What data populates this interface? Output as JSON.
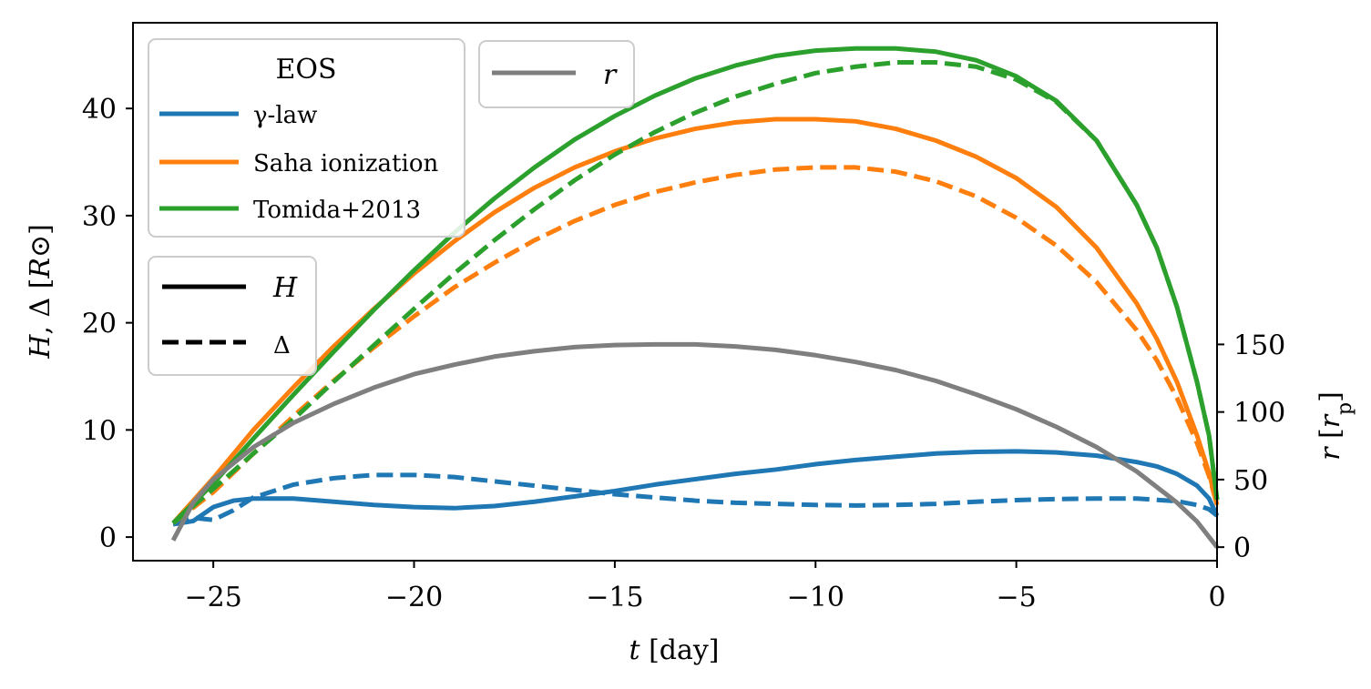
{
  "chart_data": {
    "type": "line",
    "xlabel": "t [day]",
    "ylabel": "H, Δ [R⊙]",
    "y2label": "r [r_p]",
    "xlim": [
      -27,
      0
    ],
    "ylim": [
      -2.2,
      48
    ],
    "y2lim": [
      -10,
      388
    ],
    "xticks": [
      -25,
      -20,
      -15,
      -10,
      -5,
      0
    ],
    "yticks": [
      0,
      10,
      20,
      30,
      40
    ],
    "y2ticks": [
      0,
      50,
      100,
      150
    ],
    "x_tick_labels": [
      "−25",
      "−20",
      "−15",
      "−10",
      "−5",
      "0"
    ],
    "y_tick_labels": [
      "0",
      "10",
      "20",
      "30",
      "40"
    ],
    "y2_tick_labels": [
      "0",
      "50",
      "100",
      "150"
    ],
    "colors": {
      "gamma": "#1f77b4",
      "saha": "#ff7f0e",
      "tomida": "#2ca02c",
      "r": "#7f7f7f"
    },
    "series": [
      {
        "name": "γ-law",
        "quantity": "H",
        "axis": "left",
        "style": "solid",
        "color": "#1f77b4",
        "x": [
          -26,
          -25.5,
          -25,
          -24.5,
          -24,
          -23,
          -22,
          -21,
          -20,
          -19,
          -18,
          -17,
          -16,
          -15,
          -14,
          -13,
          -12,
          -11,
          -10,
          -9,
          -8,
          -7,
          -6,
          -5,
          -4,
          -3,
          -2,
          -1.5,
          -1,
          -0.5,
          -0.2,
          0
        ],
        "y": [
          1.2,
          1.5,
          2.8,
          3.4,
          3.6,
          3.6,
          3.3,
          3.0,
          2.8,
          2.7,
          2.9,
          3.3,
          3.8,
          4.3,
          4.9,
          5.4,
          5.9,
          6.3,
          6.8,
          7.2,
          7.5,
          7.8,
          7.95,
          8.0,
          7.9,
          7.6,
          7.0,
          6.6,
          5.9,
          4.8,
          3.6,
          2.0
        ]
      },
      {
        "name": "γ-law",
        "quantity": "Δ",
        "axis": "left",
        "style": "dashed",
        "color": "#1f77b4",
        "x": [
          -26,
          -25.5,
          -25,
          -24.5,
          -24,
          -23,
          -22,
          -21,
          -20,
          -19,
          -18,
          -17,
          -16,
          -15,
          -14,
          -13,
          -12,
          -11,
          -10,
          -9,
          -8,
          -7,
          -6,
          -5,
          -4,
          -3,
          -2,
          -1,
          -0.5,
          -0.2,
          0
        ],
        "y": [
          1.2,
          1.8,
          1.6,
          2.5,
          3.7,
          4.9,
          5.5,
          5.8,
          5.8,
          5.6,
          5.2,
          4.8,
          4.4,
          4.0,
          3.7,
          3.4,
          3.2,
          3.1,
          3.0,
          2.95,
          3.0,
          3.1,
          3.3,
          3.45,
          3.55,
          3.6,
          3.6,
          3.35,
          3.0,
          2.6,
          2.0
        ]
      },
      {
        "name": "Saha ionization",
        "quantity": "H",
        "axis": "left",
        "style": "solid",
        "color": "#ff7f0e",
        "x": [
          -26,
          -25,
          -24,
          -23,
          -22,
          -21,
          -20,
          -19,
          -18,
          -17,
          -16,
          -15,
          -14,
          -13,
          -12,
          -11,
          -10,
          -9,
          -8,
          -7,
          -6,
          -5,
          -4,
          -3,
          -2,
          -1.5,
          -1,
          -0.5,
          -0.2,
          0
        ],
        "y": [
          1.3,
          5.5,
          10.0,
          14.0,
          17.8,
          21.3,
          24.6,
          27.6,
          30.3,
          32.6,
          34.5,
          36.0,
          37.2,
          38.1,
          38.7,
          39.0,
          39.0,
          38.8,
          38.1,
          37.0,
          35.5,
          33.5,
          30.8,
          27.0,
          21.8,
          18.5,
          14.5,
          9.5,
          6.0,
          3.0
        ]
      },
      {
        "name": "Saha ionization",
        "quantity": "Δ",
        "axis": "left",
        "style": "dashed",
        "color": "#ff7f0e",
        "x": [
          -26,
          -25,
          -24,
          -23,
          -22,
          -21,
          -20,
          -19,
          -18,
          -17,
          -16,
          -15,
          -14,
          -13,
          -12,
          -11,
          -10,
          -9,
          -8,
          -7,
          -6,
          -5,
          -4,
          -3,
          -2,
          -1.5,
          -1,
          -0.5,
          -0.2,
          0
        ],
        "y": [
          1.3,
          4.2,
          7.8,
          11.3,
          14.6,
          17.7,
          20.6,
          23.3,
          25.6,
          27.7,
          29.5,
          31.0,
          32.2,
          33.1,
          33.8,
          34.3,
          34.5,
          34.5,
          34.1,
          33.2,
          31.8,
          29.8,
          27.2,
          23.8,
          19.3,
          16.5,
          13.0,
          8.8,
          5.7,
          3.0
        ]
      },
      {
        "name": "Tomida+2013",
        "quantity": "H",
        "axis": "left",
        "style": "solid",
        "color": "#2ca02c",
        "x": [
          -26,
          -25,
          -24,
          -23,
          -22,
          -21,
          -20,
          -19,
          -18,
          -17,
          -16,
          -15,
          -14,
          -13,
          -12,
          -11,
          -10,
          -9,
          -8,
          -7,
          -6,
          -5,
          -4,
          -3,
          -2,
          -1.5,
          -1,
          -0.5,
          -0.2,
          0
        ],
        "y": [
          1.3,
          5.0,
          9.2,
          13.3,
          17.3,
          21.2,
          24.9,
          28.4,
          31.6,
          34.5,
          37.1,
          39.3,
          41.2,
          42.8,
          44.0,
          44.9,
          45.4,
          45.6,
          45.6,
          45.3,
          44.5,
          43.0,
          40.7,
          37.0,
          31.0,
          27.0,
          21.5,
          14.5,
          9.5,
          3.5
        ]
      },
      {
        "name": "Tomida+2013",
        "quantity": "Δ",
        "axis": "left",
        "style": "dashed",
        "color": "#2ca02c",
        "x": [
          -26,
          -25,
          -24,
          -23,
          -22,
          -21,
          -20,
          -19,
          -18,
          -17,
          -16,
          -15,
          -14,
          -13,
          -12,
          -11,
          -10,
          -9,
          -8,
          -7,
          -6,
          -5,
          -4,
          -3,
          -2,
          -1.5,
          -1,
          -0.5,
          -0.2,
          0
        ],
        "y": [
          1.3,
          4.5,
          7.8,
          11.0,
          14.5,
          17.9,
          21.3,
          24.6,
          27.7,
          30.6,
          33.3,
          35.7,
          37.8,
          39.6,
          41.1,
          42.3,
          43.3,
          43.9,
          44.3,
          44.3,
          43.9,
          42.7,
          40.6,
          37.0,
          31.0,
          27.0,
          21.5,
          14.5,
          9.5,
          3.5
        ]
      },
      {
        "name": "r",
        "quantity": "r",
        "axis": "right",
        "style": "solid",
        "color": "#7f7f7f",
        "x": [
          -26,
          -25.5,
          -25,
          -24,
          -23,
          -22,
          -21,
          -20,
          -19,
          -18,
          -17,
          -16,
          -15,
          -14,
          -13,
          -12,
          -11,
          -10,
          -9,
          -8,
          -7,
          -6,
          -5,
          -4,
          -3,
          -2,
          -1,
          -0.5,
          0
        ],
        "y": [
          5,
          33,
          50,
          74,
          92,
          106,
          118,
          128,
          135,
          141,
          145,
          148,
          149.5,
          150,
          150,
          148.5,
          146,
          142,
          137,
          131,
          123,
          113,
          102,
          89,
          74,
          56,
          33,
          19,
          0
        ]
      }
    ],
    "legends": [
      {
        "title": "EOS",
        "placement": "upper-left",
        "entries": [
          {
            "label": "γ-law",
            "color": "#1f77b4",
            "style": "solid"
          },
          {
            "label": "Saha ionization",
            "color": "#ff7f0e",
            "style": "solid"
          },
          {
            "label": "Tomida+2013",
            "color": "#2ca02c",
            "style": "solid"
          }
        ]
      },
      {
        "title": "",
        "placement": "middle-left",
        "entries": [
          {
            "label": "H",
            "color": "#000000",
            "style": "solid"
          },
          {
            "label": "Δ",
            "color": "#000000",
            "style": "dashed"
          }
        ]
      },
      {
        "title": "",
        "placement": "upper-left",
        "entries": [
          {
            "label": "r",
            "color": "#7f7f7f",
            "style": "solid"
          }
        ]
      }
    ],
    "grid": false
  }
}
